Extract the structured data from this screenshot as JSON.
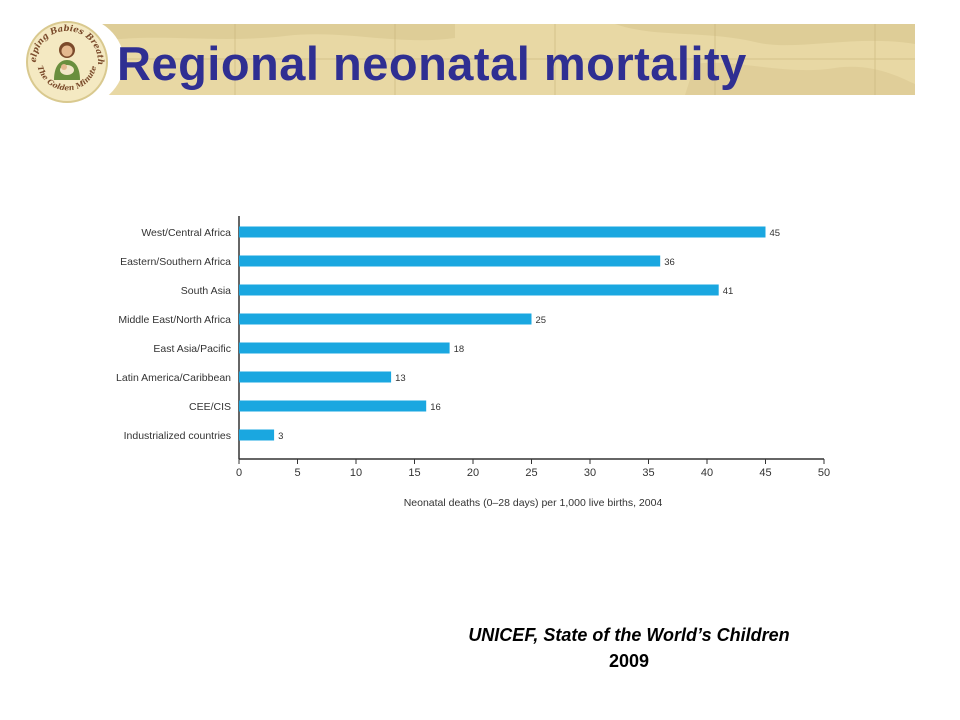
{
  "slide": {
    "title": "Regional neonatal mortality",
    "logo": {
      "text_top": "Helping Babies Breathe",
      "text_bottom": "The Golden Minute",
      "icon": "mother-and-baby-logo"
    },
    "source_line1": "UNICEF, State of the World’s Children",
    "source_line2": "2009"
  },
  "colors": {
    "title": "#2f2f92",
    "bar": "#1aa7e0",
    "banner": "#e8d8a4",
    "axis": "#333333",
    "label": "#333333"
  },
  "chart_data": {
    "type": "bar",
    "orientation": "horizontal",
    "categories": [
      "West/Central Africa",
      "Eastern/Southern Africa",
      "South Asia",
      "Middle East/North Africa",
      "East Asia/Pacific",
      "Latin America/Caribbean",
      "CEE/CIS",
      "Industrialized countries"
    ],
    "values": [
      45,
      36,
      41,
      25,
      18,
      13,
      16,
      3
    ],
    "value_labels": [
      "45",
      "36",
      "41",
      "25",
      "18",
      "13",
      "16",
      "3"
    ],
    "xlabel": "Neonatal deaths (0–28 days) per 1,000 live births, 2004",
    "ylabel": "",
    "xlim": [
      0,
      50
    ],
    "xticks": [
      0,
      5,
      10,
      15,
      20,
      25,
      30,
      35,
      40,
      45,
      50
    ],
    "grid": false,
    "legend": "none"
  }
}
